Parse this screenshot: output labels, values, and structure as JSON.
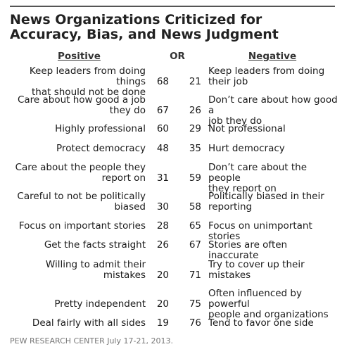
{
  "title": "News Organizations Criticized for Accuracy, Bias, and News Judgment",
  "headers": {
    "positive": "Positive",
    "or": "OR",
    "negative": "Negative"
  },
  "source": "PEW RESEARCH CENTER July 17-21, 2013.",
  "chart_data": {
    "type": "table",
    "columns": [
      "Positive",
      "%",
      "%",
      "Negative"
    ],
    "rows": [
      {
        "positive_lines": [
          "Keep leaders from doing things",
          "that should not be done"
        ],
        "positive_value": 68,
        "negative_value": 21,
        "negative_lines": [
          "Keep leaders from doing",
          "their job"
        ]
      },
      {
        "positive_lines": [
          "Care about how good a job",
          "they do"
        ],
        "positive_value": 67,
        "negative_value": 26,
        "negative_lines": [
          "Don’t care about how good a",
          "job they do"
        ]
      },
      {
        "positive_lines": [
          "Highly professional"
        ],
        "positive_value": 60,
        "negative_value": 29,
        "negative_lines": [
          "Not professional"
        ]
      },
      {
        "positive_lines": [
          "Protect democracy"
        ],
        "positive_value": 48,
        "negative_value": 35,
        "negative_lines": [
          "Hurt democracy"
        ]
      },
      {
        "positive_lines": [
          "Care about the people they",
          "report on"
        ],
        "positive_value": 31,
        "negative_value": 59,
        "negative_lines": [
          "Don’t care about the people",
          "they report on"
        ]
      },
      {
        "positive_lines": [
          "Careful to not be politically",
          "biased"
        ],
        "positive_value": 30,
        "negative_value": 58,
        "negative_lines": [
          "Politically biased in their",
          "reporting"
        ]
      },
      {
        "positive_lines": [
          "Focus on important stories"
        ],
        "positive_value": 28,
        "negative_value": 65,
        "negative_lines": [
          "Focus on unimportant stories"
        ]
      },
      {
        "positive_lines": [
          "Get the facts straight"
        ],
        "positive_value": 26,
        "negative_value": 67,
        "negative_lines": [
          "Stories are often inaccurate"
        ]
      },
      {
        "positive_lines": [
          "Willing to admit their",
          "mistakes"
        ],
        "positive_value": 20,
        "negative_value": 71,
        "negative_lines": [
          "Try to cover up their",
          "mistakes"
        ]
      },
      {
        "positive_lines": [
          "Pretty independent"
        ],
        "positive_value": 20,
        "negative_value": 75,
        "negative_lines": [
          "Often influenced by powerful",
          "people and organizations"
        ]
      },
      {
        "positive_lines": [
          "Deal fairly with all sides"
        ],
        "positive_value": 19,
        "negative_value": 76,
        "negative_lines": [
          "Tend to favor one side"
        ]
      }
    ]
  }
}
